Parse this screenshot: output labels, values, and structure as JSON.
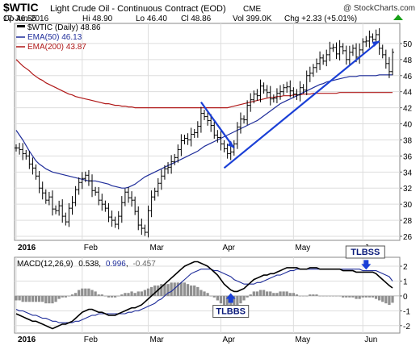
{
  "header": {
    "symbol": "$WTIC",
    "name": "Light Crude Oil - Continuous Contract (EOD)",
    "exchange": "CME",
    "watermark": "@ StockCharts.com",
    "date": "17-Jun-2016",
    "stats": [
      {
        "label": "Op",
        "value": "46.55"
      },
      {
        "label": "Hi",
        "value": "48.90"
      },
      {
        "label": "Lo",
        "value": "46.40"
      },
      {
        "label": "Cl",
        "value": "48.86"
      },
      {
        "label": "Vol",
        "value": "399.0K"
      },
      {
        "label": "Chg",
        "value": "+2.33 (+5.01%)"
      }
    ],
    "chg_icon": "triangle-up-icon"
  },
  "legend": {
    "price": "$WTIC (Daily) 48.86",
    "ema50": "EMA(50) 46.13",
    "ema200": "EMA(200) 43.87"
  },
  "macd_legend": {
    "label": "MACD(12,26,9)",
    "v1": "0.538",
    "v2": "0.996",
    "v3": "-0.457"
  },
  "annotations": {
    "tlbbs": "TLBBS",
    "tlbss": "TLBSS"
  },
  "colors": {
    "price": "#000000",
    "ema50": "#1f2d9a",
    "ema200": "#b01818",
    "trend": "#1a3fd6",
    "histogram": "#909090",
    "grid": "#dddddd"
  },
  "chart_data": [
    {
      "type": "line",
      "title": "$WTIC (Daily)",
      "price_style": "ohlc",
      "ylim": [
        25.5,
        52.5
      ],
      "y_ticks": [
        26,
        28,
        30,
        32,
        34,
        36,
        38,
        40,
        42,
        44,
        46,
        48,
        50
      ],
      "x_ticks": [
        "2016",
        "Feb",
        "Mar",
        "Apr",
        "May",
        "Jun"
      ],
      "x_tick_positions": [
        0,
        20,
        40,
        62,
        84,
        105
      ],
      "series": [
        {
          "name": "$WTIC (Daily) 48.86",
          "role": "price",
          "values": [
            37.0,
            36.8,
            36.3,
            36.0,
            35.0,
            34.5,
            33.5,
            32.0,
            31.4,
            30.5,
            30.9,
            29.4,
            29.2,
            29.8,
            28.5,
            27.8,
            29.5,
            30.2,
            31.8,
            32.7,
            33.2,
            33.6,
            32.9,
            31.7,
            31.5,
            30.5,
            30.0,
            29.5,
            28.4,
            28.0,
            27.5,
            28.5,
            30.2,
            31.5,
            30.8,
            30.5,
            29.1,
            27.4,
            27.0,
            26.5,
            29.2,
            30.9,
            31.6,
            32.6,
            33.5,
            34.4,
            34.6,
            35.3,
            35.8,
            36.8,
            37.9,
            38.2,
            38.0,
            38.7,
            38.9,
            39.7,
            41.3,
            40.9,
            40.4,
            39.8,
            38.6,
            38.3,
            37.5,
            36.9,
            36.3,
            36.5,
            37.5,
            39.6,
            40.6,
            40.5,
            42.3,
            43.0,
            43.7,
            43.5,
            44.7,
            44.2,
            43.9,
            43.1,
            43.2,
            43.8,
            44.0,
            44.5,
            44.6,
            44.1,
            43.7,
            43.6,
            44.5,
            44.2,
            46.0,
            46.3,
            47.0,
            47.5,
            48.2,
            47.8,
            48.6,
            49.4,
            49.5,
            48.7,
            49.6,
            49.1,
            48.0,
            48.9,
            49.4,
            48.3,
            49.2,
            50.2,
            50.3,
            50.8,
            50.5,
            51.1,
            49.4,
            48.6,
            47.5,
            46.5,
            48.9
          ]
        },
        {
          "name": "EMA(50) 46.13",
          "role": "ema50",
          "values": [
            39.2,
            38.6,
            38.0,
            37.3,
            36.6,
            36.0,
            35.4,
            35.0,
            34.7,
            34.4,
            34.2,
            34.0,
            33.9,
            33.8,
            33.7,
            33.6,
            33.5,
            33.4,
            33.3,
            33.2,
            33.1,
            33.0,
            32.9,
            32.9,
            32.9,
            32.8,
            32.7,
            32.6,
            32.5,
            32.3,
            32.2,
            32.1,
            32.0,
            32.0,
            32.1,
            32.3,
            32.5,
            32.8,
            33.1,
            33.4,
            33.6,
            33.8,
            34.0,
            34.2,
            34.4,
            34.6,
            34.8,
            35.0,
            35.2,
            35.4,
            35.6,
            35.8,
            36.0,
            36.2,
            36.4,
            36.6,
            36.9,
            37.2,
            37.4,
            37.6,
            37.8,
            38.0,
            38.2,
            38.4,
            38.6,
            38.8,
            39.0,
            39.2,
            39.4,
            39.6,
            39.8,
            40.0,
            40.2,
            40.4,
            40.7,
            41.0,
            41.3,
            41.6,
            41.9,
            42.2,
            42.5,
            42.7,
            42.9,
            43.1,
            43.3,
            43.5,
            43.7,
            43.9,
            44.1,
            44.3,
            44.5,
            44.7,
            44.9,
            45.0,
            45.2,
            45.3,
            45.4,
            45.5,
            45.6,
            45.7,
            45.8,
            45.9,
            45.9,
            45.9,
            46.0,
            46.0,
            46.0,
            46.0,
            46.0,
            46.0,
            46.1,
            46.1,
            46.1,
            46.1,
            46.1
          ]
        },
        {
          "name": "EMA(200) 43.87",
          "role": "ema200",
          "values": [
            48.0,
            47.6,
            47.2,
            46.9,
            46.6,
            46.2,
            45.9,
            45.6,
            45.4,
            45.1,
            44.9,
            44.7,
            44.5,
            44.3,
            44.1,
            43.9,
            43.7,
            43.6,
            43.4,
            43.3,
            43.2,
            43.1,
            43.0,
            42.9,
            42.8,
            42.7,
            42.6,
            42.5,
            42.5,
            42.4,
            42.3,
            42.3,
            42.2,
            42.2,
            42.1,
            42.1,
            42.0,
            42.0,
            42.0,
            42.0,
            42.0,
            42.0,
            42.0,
            42.0,
            42.0,
            42.0,
            42.0,
            42.0,
            42.0,
            42.0,
            42.0,
            42.0,
            42.0,
            42.0,
            42.0,
            42.0,
            42.0,
            42.0,
            42.0,
            42.0,
            42.0,
            42.0,
            42.0,
            42.0,
            42.0,
            42.1,
            42.2,
            42.3,
            42.4,
            42.5,
            42.6,
            42.7,
            42.8,
            42.9,
            43.0,
            43.1,
            43.2,
            43.3,
            43.3,
            43.4,
            43.4,
            43.5,
            43.5,
            43.5,
            43.6,
            43.6,
            43.6,
            43.7,
            43.7,
            43.7,
            43.8,
            43.8,
            43.8,
            43.8,
            43.8,
            43.8,
            43.8,
            43.8,
            43.9,
            43.9,
            43.9,
            43.9,
            43.9,
            43.9,
            43.9,
            43.9,
            43.9,
            43.9,
            43.9,
            43.9,
            43.9,
            43.9,
            43.9,
            43.9,
            43.9
          ]
        }
      ],
      "trendlines": [
        {
          "from": [
            56,
            42.7
          ],
          "to": [
            66,
            37.0
          ]
        },
        {
          "from": [
            63,
            34.5
          ],
          "to": [
            110,
            50.3
          ]
        }
      ]
    },
    {
      "type": "line",
      "title": "MACD(12,26,9)",
      "ylim": [
        -2.5,
        2.6
      ],
      "y_ticks": [
        -2,
        -1,
        0,
        1,
        2
      ],
      "x_ticks": [
        "2016",
        "Feb",
        "Mar",
        "Apr",
        "May",
        "Jun"
      ],
      "x_tick_positions": [
        0,
        20,
        40,
        62,
        84,
        105
      ],
      "series": [
        {
          "name": "MACD",
          "role": "macd",
          "values": [
            -1.2,
            -1.3,
            -1.4,
            -1.5,
            -1.6,
            -1.7,
            -1.7,
            -1.8,
            -1.9,
            -2.0,
            -2.1,
            -2.2,
            -2.1,
            -2.0,
            -1.9,
            -1.9,
            -1.8,
            -1.7,
            -1.5,
            -1.3,
            -1.1,
            -1.0,
            -0.9,
            -0.9,
            -1.0,
            -1.1,
            -1.1,
            -1.2,
            -1.3,
            -1.3,
            -1.3,
            -1.2,
            -1.1,
            -1.0,
            -0.9,
            -0.8,
            -0.8,
            -0.7,
            -0.6,
            -0.4,
            -0.2,
            0.0,
            0.2,
            0.4,
            0.6,
            0.8,
            1.0,
            1.2,
            1.4,
            1.6,
            1.8,
            2.0,
            2.1,
            2.2,
            2.3,
            2.3,
            2.2,
            2.1,
            2.0,
            1.8,
            1.6,
            1.4,
            1.1,
            0.8,
            0.6,
            0.4,
            0.3,
            0.3,
            0.4,
            0.5,
            0.7,
            0.9,
            1.1,
            1.2,
            1.3,
            1.4,
            1.4,
            1.5,
            1.5,
            1.6,
            1.7,
            1.8,
            1.9,
            1.9,
            1.9,
            1.9,
            1.8,
            1.8,
            1.8,
            1.9,
            1.9,
            1.9,
            1.8,
            1.8,
            1.8,
            1.8,
            1.8,
            1.8,
            1.8,
            1.7,
            1.7,
            1.7,
            1.7,
            1.6,
            1.6,
            1.6,
            1.6,
            1.6,
            1.6,
            1.5,
            1.3,
            1.1,
            0.9,
            0.7,
            0.54
          ]
        },
        {
          "name": "Signal",
          "role": "signal",
          "values": [
            -0.9,
            -1.0,
            -1.0,
            -1.1,
            -1.2,
            -1.3,
            -1.3,
            -1.4,
            -1.5,
            -1.5,
            -1.6,
            -1.7,
            -1.7,
            -1.8,
            -1.8,
            -1.8,
            -1.8,
            -1.8,
            -1.7,
            -1.7,
            -1.6,
            -1.5,
            -1.4,
            -1.3,
            -1.3,
            -1.2,
            -1.2,
            -1.2,
            -1.2,
            -1.2,
            -1.2,
            -1.2,
            -1.2,
            -1.2,
            -1.1,
            -1.1,
            -1.0,
            -1.0,
            -0.9,
            -0.8,
            -0.7,
            -0.6,
            -0.5,
            -0.3,
            -0.2,
            0.0,
            0.2,
            0.3,
            0.5,
            0.7,
            0.9,
            1.1,
            1.3,
            1.5,
            1.6,
            1.7,
            1.8,
            1.8,
            1.8,
            1.8,
            1.7,
            1.7,
            1.6,
            1.5,
            1.4,
            1.3,
            1.1,
            1.0,
            0.9,
            0.8,
            0.8,
            0.8,
            0.8,
            0.9,
            0.9,
            1.0,
            1.1,
            1.2,
            1.3,
            1.4,
            1.4,
            1.5,
            1.6,
            1.7,
            1.7,
            1.8,
            1.8,
            1.8,
            1.8,
            1.8,
            1.8,
            1.8,
            1.8,
            1.8,
            1.8,
            1.8,
            1.8,
            1.8,
            1.8,
            1.8,
            1.8,
            1.8,
            1.8,
            1.8,
            1.8,
            1.7,
            1.7,
            1.7,
            1.7,
            1.7,
            1.6,
            1.5,
            1.4,
            1.3,
            1.0
          ]
        },
        {
          "name": "Histogram",
          "role": "hist",
          "values": [
            -0.3,
            -0.3,
            -0.4,
            -0.4,
            -0.4,
            -0.4,
            -0.4,
            -0.4,
            -0.4,
            -0.5,
            -0.5,
            -0.5,
            -0.4,
            -0.2,
            -0.1,
            -0.1,
            0.0,
            0.1,
            0.2,
            0.4,
            0.5,
            0.5,
            0.5,
            0.4,
            0.3,
            0.1,
            0.1,
            0.0,
            -0.1,
            -0.1,
            -0.1,
            0.0,
            0.1,
            0.2,
            0.2,
            0.3,
            0.2,
            0.3,
            0.3,
            0.4,
            0.5,
            0.6,
            0.7,
            0.7,
            0.8,
            0.8,
            0.8,
            0.9,
            0.9,
            0.9,
            0.9,
            0.9,
            0.8,
            0.7,
            0.7,
            0.6,
            0.4,
            0.3,
            0.2,
            0.0,
            -0.1,
            -0.3,
            -0.5,
            -0.7,
            -0.8,
            -0.9,
            -0.8,
            -0.7,
            -0.5,
            -0.3,
            -0.1,
            0.1,
            0.3,
            0.3,
            0.4,
            0.4,
            0.3,
            0.3,
            0.2,
            0.2,
            0.3,
            0.3,
            0.3,
            0.2,
            0.2,
            0.1,
            0.0,
            0.0,
            0.0,
            0.1,
            0.1,
            0.1,
            0.0,
            0.0,
            0.0,
            0.0,
            0.0,
            0.0,
            0.0,
            -0.1,
            -0.1,
            -0.1,
            -0.1,
            -0.2,
            -0.2,
            -0.1,
            -0.1,
            -0.1,
            -0.1,
            -0.2,
            -0.3,
            -0.4,
            -0.5,
            -0.6,
            -0.46
          ]
        }
      ],
      "markers": [
        {
          "label": "TLBBS",
          "at": 65,
          "direction": "up"
        },
        {
          "label": "TLBSS",
          "at": 106,
          "direction": "down"
        }
      ]
    }
  ]
}
